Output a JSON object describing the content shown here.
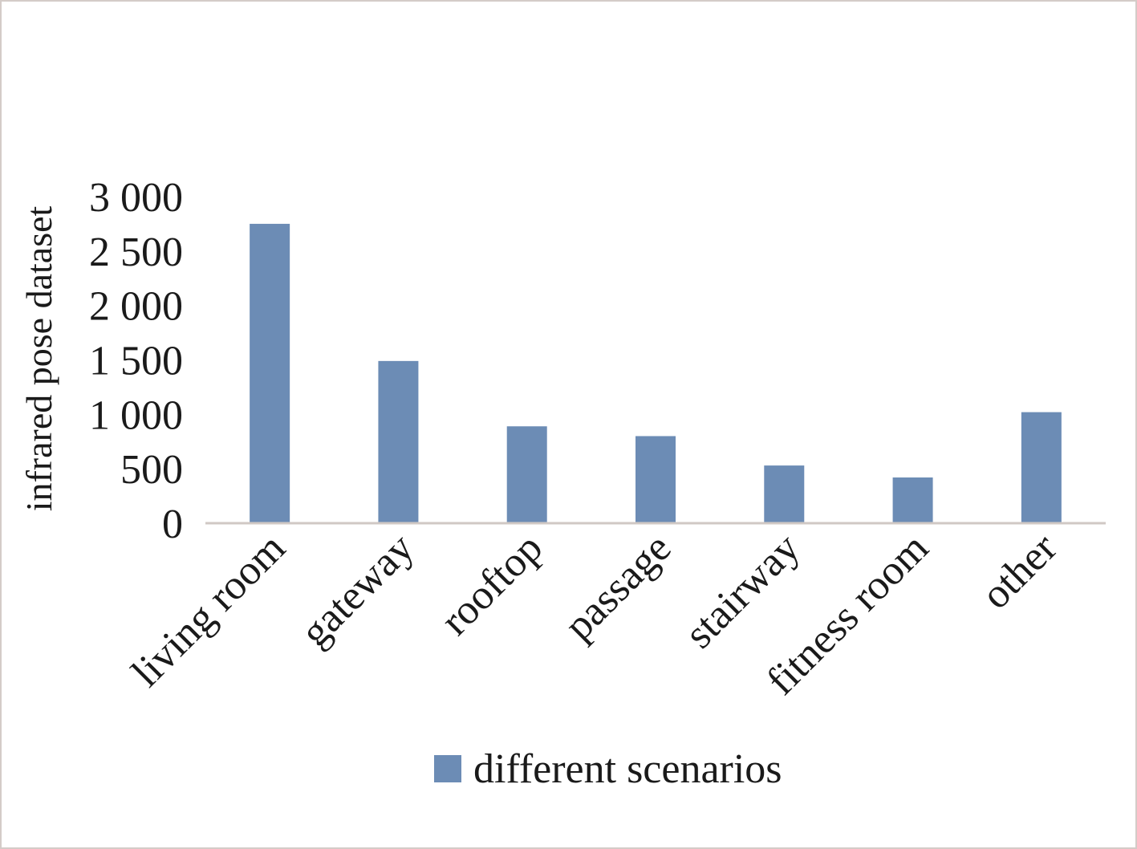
{
  "chart_data": {
    "type": "bar",
    "title": "",
    "xlabel": "",
    "ylabel": "infrared pose dataset",
    "categories": [
      "living room",
      "gateway",
      "rooftop",
      "passage",
      "stairway",
      "fitness room",
      "other"
    ],
    "series": [
      {
        "name": "different scenarios",
        "values": [
          2750,
          1490,
          890,
          800,
          530,
          420,
          1020
        ]
      }
    ],
    "ylim": [
      0,
      3000
    ],
    "yticks": [
      0,
      500,
      1000,
      1500,
      2000,
      2500,
      3000
    ],
    "ytick_labels": [
      "0",
      "500",
      "1 000",
      "1 500",
      "2 000",
      "2 500",
      "3 000"
    ],
    "grid": false,
    "legend": "bottom",
    "colors": {
      "bar": "#6c8cb5",
      "axis": "#d0c8c4"
    }
  }
}
